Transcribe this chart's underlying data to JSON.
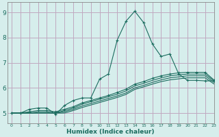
{
  "xlabel": "Humidex (Indice chaleur)",
  "background_color": "#d6eeec",
  "grid_color": "#c0a8c0",
  "line_color": "#1a6b5e",
  "xlim": [
    -0.5,
    23
  ],
  "ylim": [
    4.6,
    9.4
  ],
  "xticks": [
    0,
    1,
    2,
    3,
    4,
    5,
    6,
    7,
    8,
    9,
    10,
    11,
    12,
    13,
    14,
    15,
    16,
    17,
    18,
    19,
    20,
    21,
    22,
    23
  ],
  "yticks": [
    5,
    6,
    7,
    8,
    9
  ],
  "lines": [
    {
      "x": [
        0,
        1,
        2,
        3,
        4,
        5,
        6,
        7,
        8,
        9,
        10,
        11,
        12,
        13,
        14,
        15,
        16,
        17,
        18,
        19,
        20,
        21,
        22,
        23
      ],
      "y": [
        5.0,
        5.0,
        5.15,
        5.2,
        5.2,
        4.95,
        5.3,
        5.5,
        5.6,
        5.6,
        6.35,
        6.55,
        7.9,
        8.65,
        9.05,
        8.6,
        7.75,
        7.25,
        7.35,
        6.55,
        6.3,
        6.3,
        6.28,
        6.28
      ],
      "marker": "+"
    },
    {
      "x": [
        0,
        1,
        2,
        3,
        4,
        5,
        6,
        7,
        8,
        9,
        10,
        11,
        12,
        13,
        14,
        15,
        16,
        17,
        18,
        19,
        20,
        21,
        22,
        23
      ],
      "y": [
        5.0,
        5.0,
        5.05,
        5.1,
        5.1,
        5.05,
        5.15,
        5.25,
        5.4,
        5.5,
        5.6,
        5.7,
        5.82,
        5.95,
        6.15,
        6.25,
        6.38,
        6.48,
        6.55,
        6.6,
        6.62,
        6.62,
        6.62,
        6.32
      ],
      "marker": "+"
    },
    {
      "x": [
        0,
        1,
        2,
        3,
        4,
        5,
        6,
        7,
        8,
        9,
        10,
        11,
        12,
        13,
        14,
        15,
        16,
        17,
        18,
        19,
        20,
        21,
        22,
        23
      ],
      "y": [
        5.0,
        5.0,
        5.0,
        5.05,
        5.05,
        5.0,
        5.1,
        5.2,
        5.35,
        5.45,
        5.55,
        5.65,
        5.75,
        5.88,
        6.08,
        6.18,
        6.3,
        6.4,
        6.48,
        6.52,
        6.55,
        6.55,
        6.55,
        6.28
      ],
      "marker": null
    },
    {
      "x": [
        0,
        1,
        2,
        3,
        4,
        5,
        6,
        7,
        8,
        9,
        10,
        11,
        12,
        13,
        14,
        15,
        16,
        17,
        18,
        19,
        20,
        21,
        22,
        23
      ],
      "y": [
        5.0,
        5.0,
        5.0,
        5.0,
        5.0,
        5.0,
        5.05,
        5.15,
        5.28,
        5.38,
        5.48,
        5.58,
        5.68,
        5.8,
        6.0,
        6.1,
        6.22,
        6.32,
        6.4,
        6.44,
        6.48,
        6.48,
        6.48,
        6.22
      ],
      "marker": null
    },
    {
      "x": [
        0,
        1,
        2,
        3,
        4,
        5,
        6,
        7,
        8,
        9,
        10,
        11,
        12,
        13,
        14,
        15,
        16,
        17,
        18,
        19,
        20,
        21,
        22,
        23
      ],
      "y": [
        5.0,
        5.0,
        5.0,
        5.0,
        5.0,
        5.0,
        5.0,
        5.1,
        5.22,
        5.32,
        5.42,
        5.52,
        5.62,
        5.74,
        5.94,
        6.04,
        6.15,
        6.25,
        6.32,
        6.36,
        6.4,
        6.4,
        6.4,
        6.16
      ],
      "marker": null
    }
  ]
}
